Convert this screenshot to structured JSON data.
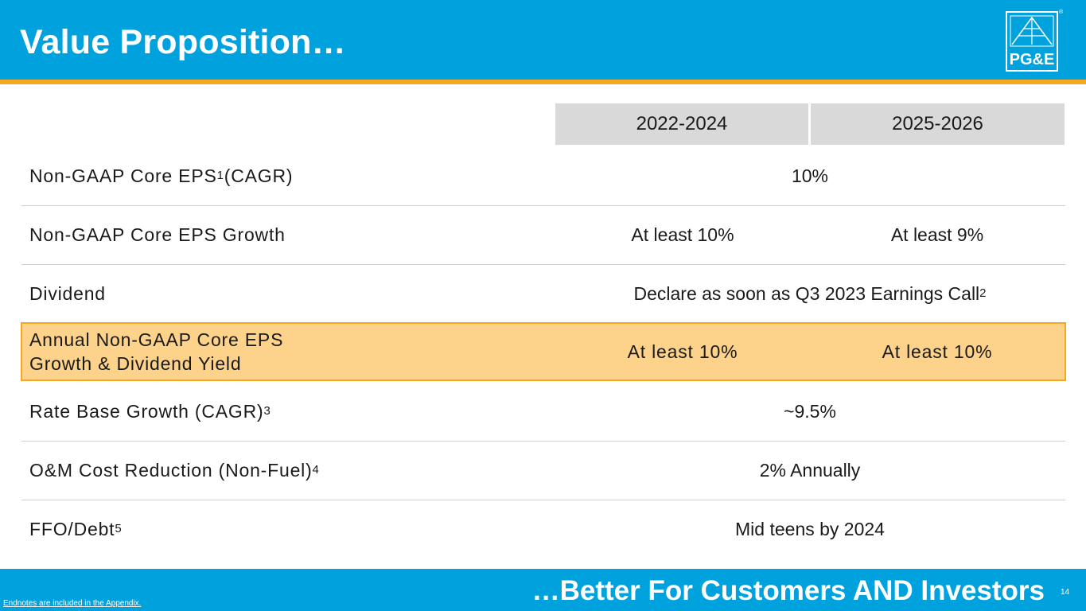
{
  "header": {
    "title": "Value Proposition…"
  },
  "logo": {
    "text": "PG&E",
    "mark": "®"
  },
  "columns": [
    "2022-2024",
    "2025-2026"
  ],
  "rows": [
    {
      "label": "Non-GAAP Core EPS",
      "sup": "1",
      "label_suffix": " (CAGR)",
      "value": "10%"
    },
    {
      "label": "Non-GAAP Core EPS Growth",
      "value_a": "At least 10%",
      "value_b": "At least 9%"
    },
    {
      "label": "Dividend",
      "value": "Declare as soon as Q3 2023 Earnings Call",
      "value_sup": "2"
    },
    {
      "label_line1": "Annual Non-GAAP Core EPS",
      "label_line2": "Growth & Dividend Yield",
      "value_a": "At least 10%",
      "value_b": "At least 10%"
    },
    {
      "label": "Rate Base Growth (CAGR)",
      "sup": "3",
      "value": "~9.5%"
    },
    {
      "label": "O&M Cost Reduction (Non-Fuel)",
      "sup": "4",
      "value": "2% Annually"
    },
    {
      "label": "FFO/Debt",
      "sup": "5",
      "value": "Mid teens by 2024"
    }
  ],
  "footer": {
    "tagline": "…Better For Customers AND Investors",
    "page_number": "14",
    "endnote": "Endnotes are included in the Appendix."
  },
  "colors": {
    "header_blue": "#00a2de",
    "accent_orange": "#f5a623",
    "highlight_fill": "#fdd28a"
  }
}
